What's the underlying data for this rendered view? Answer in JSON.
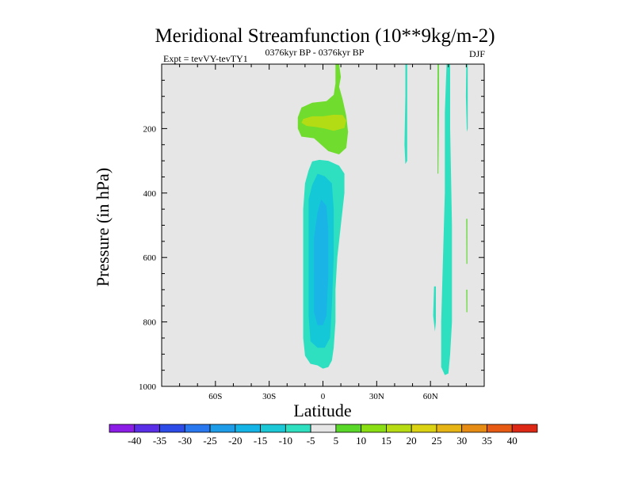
{
  "chart_data": {
    "type": "contour",
    "title": "Meridional Streamfunction (10**9kg/m-2)",
    "subtitle_left": "Expt = tevVY-tevTY1",
    "subtitle_center": "0376kyr BP - 0376kyr BP",
    "season": "DJF",
    "xlabel": "Latitude",
    "ylabel": "Pressure (in hPa)",
    "xlim": [
      -90,
      90
    ],
    "ylim": [
      1000,
      0
    ],
    "x_ticks": [
      {
        "value": -60,
        "label": "60S"
      },
      {
        "value": -30,
        "label": "30S"
      },
      {
        "value": 0,
        "label": "0"
      },
      {
        "value": 30,
        "label": "30N"
      },
      {
        "value": 60,
        "label": "60N"
      }
    ],
    "y_ticks": [
      {
        "value": 200,
        "label": "200"
      },
      {
        "value": 400,
        "label": "400"
      },
      {
        "value": 600,
        "label": "600"
      },
      {
        "value": 800,
        "label": "800"
      },
      {
        "value": 1000,
        "label": "1000"
      }
    ],
    "background_color": "#e6e6e6",
    "colorbar": {
      "labels": [
        "-40",
        "-35",
        "-30",
        "-25",
        "-20",
        "-15",
        "-10",
        "-5",
        "5",
        "10",
        "15",
        "20",
        "25",
        "30",
        "35",
        "40"
      ],
      "colors": [
        "#8c1de6",
        "#5a2de6",
        "#2d4be6",
        "#2a78f0",
        "#1f9ce8",
        "#14b4e6",
        "#1cc8d6",
        "#2ee0c0",
        "#e6e6e6",
        "#5ad82a",
        "#8ade14",
        "#b8dc14",
        "#dcd214",
        "#e6b414",
        "#e68c14",
        "#e65a14",
        "#dc2814"
      ]
    },
    "regions": [
      {
        "name": "upper-tropical-positive-cell",
        "value": 5,
        "color": "#6fdc2e",
        "points": [
          [
            7,
            0
          ],
          [
            9,
            0
          ],
          [
            10,
            40
          ],
          [
            9,
            70
          ],
          [
            11,
            110
          ],
          [
            13,
            160
          ],
          [
            14,
            210
          ],
          [
            13,
            260
          ],
          [
            9,
            280
          ],
          [
            3,
            270
          ],
          [
            0,
            255
          ],
          [
            -5,
            230
          ],
          [
            -12,
            225
          ],
          [
            -14,
            200
          ],
          [
            -14,
            165
          ],
          [
            -12,
            135
          ],
          [
            -6,
            120
          ],
          [
            2,
            115
          ],
          [
            6,
            95
          ],
          [
            7,
            60
          ]
        ]
      },
      {
        "name": "upper-tropical-positive-core",
        "value": 10,
        "color": "#b4dc14",
        "points": [
          [
            -11,
            170
          ],
          [
            -6,
            162
          ],
          [
            0,
            162
          ],
          [
            6,
            157
          ],
          [
            11,
            158
          ],
          [
            13,
            175
          ],
          [
            12,
            198
          ],
          [
            6,
            207
          ],
          [
            1,
            200
          ],
          [
            -4,
            195
          ],
          [
            -9,
            192
          ],
          [
            -12,
            182
          ]
        ]
      },
      {
        "name": "lower-tropical-negative-cell",
        "value": -5,
        "color": "#2ee0c0",
        "points": [
          [
            -6,
            302
          ],
          [
            -2,
            297
          ],
          [
            3,
            300
          ],
          [
            9,
            315
          ],
          [
            12,
            340
          ],
          [
            12,
            400
          ],
          [
            10,
            500
          ],
          [
            8,
            600
          ],
          [
            7,
            700
          ],
          [
            7,
            800
          ],
          [
            6,
            880
          ],
          [
            5,
            920
          ],
          [
            3,
            940
          ],
          [
            0,
            945
          ],
          [
            -3,
            935
          ],
          [
            -7,
            930
          ],
          [
            -10,
            905
          ],
          [
            -11,
            850
          ],
          [
            -11,
            750
          ],
          [
            -11,
            650
          ],
          [
            -11,
            550
          ],
          [
            -11,
            450
          ],
          [
            -10,
            370
          ],
          [
            -8,
            330
          ]
        ]
      },
      {
        "name": "lower-tropical-negative-mid",
        "value": -10,
        "color": "#14c8d8",
        "points": [
          [
            -3,
            340
          ],
          [
            1,
            348
          ],
          [
            5,
            370
          ],
          [
            6,
            450
          ],
          [
            6,
            600
          ],
          [
            5,
            750
          ],
          [
            4,
            850
          ],
          [
            1,
            880
          ],
          [
            -3,
            880
          ],
          [
            -7,
            860
          ],
          [
            -8,
            780
          ],
          [
            -8,
            650
          ],
          [
            -8,
            520
          ],
          [
            -8,
            420
          ],
          [
            -6,
            375
          ]
        ]
      },
      {
        "name": "lower-tropical-negative-core",
        "value": -15,
        "color": "#1ab4e6",
        "points": [
          [
            -1,
            420
          ],
          [
            2,
            440
          ],
          [
            3,
            520
          ],
          [
            3,
            650
          ],
          [
            2,
            780
          ],
          [
            0,
            810
          ],
          [
            -3,
            810
          ],
          [
            -5,
            770
          ],
          [
            -5,
            650
          ],
          [
            -5,
            540
          ],
          [
            -3,
            460
          ]
        ]
      },
      {
        "name": "northern-negative-band",
        "value": -5,
        "color": "#2ee0c0",
        "points": [
          [
            69,
            0
          ],
          [
            71,
            0
          ],
          [
            71,
            200
          ],
          [
            72,
            500
          ],
          [
            72,
            800
          ],
          [
            71,
            900
          ],
          [
            70,
            960
          ],
          [
            68,
            965
          ],
          [
            66,
            940
          ],
          [
            66,
            800
          ],
          [
            67,
            600
          ],
          [
            68,
            400
          ],
          [
            68,
            150
          ]
        ]
      },
      {
        "name": "band-45n",
        "value": -5,
        "color": "#2ee0c0",
        "points": [
          [
            46,
            0
          ],
          [
            47,
            0
          ],
          [
            47,
            150
          ],
          [
            47,
            300
          ],
          [
            46,
            310
          ],
          [
            45.5,
            250
          ],
          [
            46,
            100
          ]
        ]
      },
      {
        "name": "band-62n",
        "value": -5,
        "color": "#2ee0c0",
        "points": [
          [
            62,
            690
          ],
          [
            63,
            690
          ],
          [
            63,
            800
          ],
          [
            62.5,
            830
          ],
          [
            61.5,
            780
          ]
        ]
      },
      {
        "name": "band-80n",
        "value": -5,
        "color": "#2ee0c0",
        "points": [
          [
            80,
            0
          ],
          [
            80.8,
            0
          ],
          [
            80.8,
            200
          ],
          [
            80.3,
            210
          ],
          [
            79.8,
            100
          ]
        ]
      },
      {
        "name": "strip-64n",
        "value": 5,
        "color": "#5ad82a",
        "points": [
          [
            64,
            0
          ],
          [
            64.7,
            0
          ],
          [
            64.7,
            120
          ],
          [
            64.4,
            340
          ],
          [
            64,
            340
          ],
          [
            63.9,
            150
          ]
        ]
      },
      {
        "name": "strip-80n-lower",
        "value": 5,
        "color": "#5ad82a",
        "points": [
          [
            80,
            480
          ],
          [
            80.6,
            480
          ],
          [
            80.6,
            620
          ],
          [
            80.1,
            620
          ]
        ]
      },
      {
        "name": "strip-80n-bottom",
        "value": 5,
        "color": "#5ad82a",
        "points": [
          [
            80,
            700
          ],
          [
            80.6,
            700
          ],
          [
            80.6,
            770
          ],
          [
            80.1,
            770
          ]
        ]
      }
    ]
  }
}
